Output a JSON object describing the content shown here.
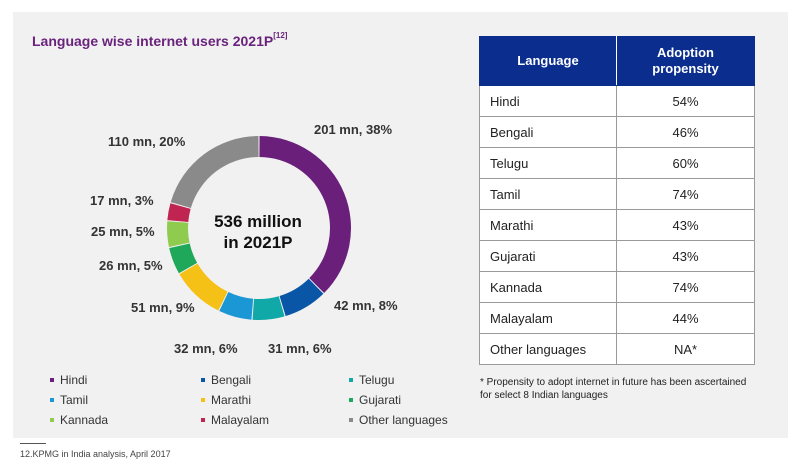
{
  "title": "Language wise internet users 2021P",
  "title_ref": "[12]",
  "center_text": [
    "536 million",
    "in 2021P"
  ],
  "chart_data": {
    "type": "pie",
    "variant": "donut",
    "title": "Language wise internet users 2021P",
    "total_label": "536 million in 2021P",
    "slices": [
      {
        "name": "Hindi",
        "value": 201,
        "percent": 38,
        "label": "201 mn, 38%",
        "color": "#6a1f7a"
      },
      {
        "name": "Bengali",
        "value": 42,
        "percent": 8,
        "label": "42 mn, 8%",
        "color": "#0a56a6"
      },
      {
        "name": "Telugu",
        "value": 31,
        "percent": 6,
        "label": "31 mn, 6%",
        "color": "#11a8a8"
      },
      {
        "name": "Tamil",
        "value": 32,
        "percent": 6,
        "label": "32 mn, 6%",
        "color": "#1c97d6"
      },
      {
        "name": "Marathi",
        "value": 51,
        "percent": 9,
        "label": "51 mn, 9%",
        "color": "#f5c116"
      },
      {
        "name": "Gujarati",
        "value": 26,
        "percent": 5,
        "label": "26 mn, 5%",
        "color": "#1fa85a"
      },
      {
        "name": "Kannada",
        "value": 25,
        "percent": 5,
        "label": "25 mn, 5%",
        "color": "#8fcb4e"
      },
      {
        "name": "Malayalam",
        "value": 17,
        "percent": 3,
        "label": "17 mn, 3%",
        "color": "#c02552"
      },
      {
        "name": "Other languages",
        "value": 110,
        "percent": 20,
        "label": "110 mn, 20%",
        "color": "#8a8a8a"
      }
    ],
    "legend": [
      "Hindi",
      "Bengali",
      "Telugu",
      "Tamil",
      "Marathi",
      "Gujarati",
      "Kannada",
      "Malayalam",
      "Other languages"
    ]
  },
  "table": {
    "headers": [
      "Language",
      "Adoption propensity"
    ],
    "rows": [
      [
        "Hindi",
        "54%"
      ],
      [
        "Bengali",
        "46%"
      ],
      [
        "Telugu",
        "60%"
      ],
      [
        "Tamil",
        "74%"
      ],
      [
        "Marathi",
        "43%"
      ],
      [
        "Gujarati",
        "43%"
      ],
      [
        "Kannada",
        "74%"
      ],
      [
        "Malayalam",
        "44%"
      ],
      [
        "Other languages",
        "NA*"
      ]
    ]
  },
  "note": "* Propensity to adopt internet in future has been ascertained for select 8 Indian languages",
  "source": "12.KPMG in India analysis, April 2017"
}
